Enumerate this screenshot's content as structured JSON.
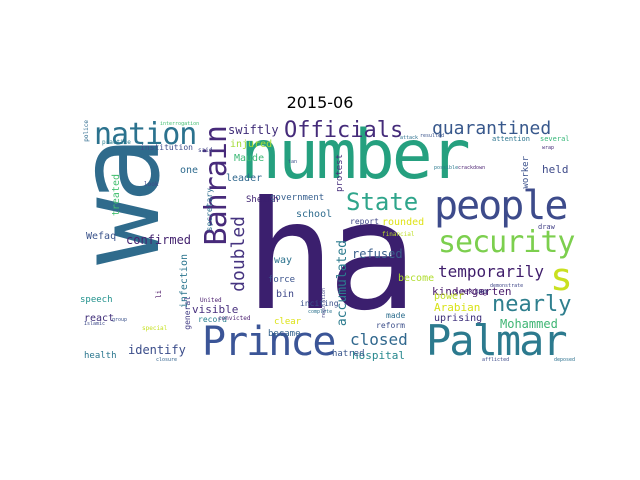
{
  "title": "2015-06",
  "words": [
    {
      "text": "ha",
      "color": "#3b1f6e"
    },
    {
      "text": "wa",
      "color": "#2f6b8c"
    },
    {
      "text": "number",
      "color": "#25a07f"
    },
    {
      "text": "people",
      "color": "#3d4b8b"
    },
    {
      "text": "Palmar",
      "color": "#2c7a8e"
    },
    {
      "text": "Prince",
      "color": "#3b5597"
    },
    {
      "text": "Bahrain",
      "color": "#472a7a"
    },
    {
      "text": "security",
      "color": "#7ccf4e"
    },
    {
      "text": "nation",
      "color": "#2b728e"
    },
    {
      "text": "Officials",
      "color": "#452b7a"
    },
    {
      "text": "State",
      "color": "#2fa58b"
    },
    {
      "text": "quarantined",
      "color": "#38588c"
    },
    {
      "text": "s",
      "color": "#c9e020"
    },
    {
      "text": "nearly",
      "color": "#2f7f8e"
    },
    {
      "text": "temporarily",
      "color": "#3f1d6b"
    },
    {
      "text": "doubled",
      "color": "#463480"
    },
    {
      "text": "closed",
      "color": "#31688e"
    },
    {
      "text": "hospital",
      "color": "#26878d"
    },
    {
      "text": "swiftly",
      "color": "#3f2c78"
    },
    {
      "text": "Mohammed",
      "color": "#3eb573"
    },
    {
      "text": "accumulated",
      "color": "#2c7b8e"
    },
    {
      "text": "kindergarten",
      "color": "#4a1c6b"
    },
    {
      "text": "refused",
      "color": "#3a5f8b"
    },
    {
      "text": "confirmed",
      "color": "#452470"
    },
    {
      "text": "identify",
      "color": "#3b4d8a"
    },
    {
      "text": "Arabian",
      "color": "#d8e219"
    },
    {
      "text": "uprising",
      "color": "#3b2c79"
    },
    {
      "text": "visible",
      "color": "#472f7d"
    },
    {
      "text": "school",
      "color": "#2f6c8e"
    },
    {
      "text": "government",
      "color": "#355e8d"
    },
    {
      "text": "Maude",
      "color": "#3cb876"
    },
    {
      "text": "injured",
      "color": "#a5db36"
    },
    {
      "text": "leader",
      "color": "#31688e"
    },
    {
      "text": "held",
      "color": "#3e4a89"
    },
    {
      "text": "seeking",
      "color": "#482173"
    },
    {
      "text": "power",
      "color": "#c2df23"
    },
    {
      "text": "health",
      "color": "#2a768e"
    },
    {
      "text": "speech",
      "color": "#21918c"
    },
    {
      "text": "Wefaq",
      "color": "#3a538b"
    },
    {
      "text": "Sheikh",
      "color": "#3b1f6e"
    },
    {
      "text": "one",
      "color": "#2f6b8e"
    },
    {
      "text": "bin",
      "color": "#3f4889"
    },
    {
      "text": "force",
      "color": "#3a528b"
    },
    {
      "text": "way",
      "color": "#2c728e"
    },
    {
      "text": "react",
      "color": "#3f2d78"
    },
    {
      "text": "infection",
      "color": "#2b758e"
    },
    {
      "text": "treated",
      "color": "#44bf70"
    },
    {
      "text": "protest",
      "color": "#472e7c"
    },
    {
      "text": "become",
      "color": "#b0dd2f"
    },
    {
      "text": "reform",
      "color": "#3c4f8a"
    },
    {
      "text": "made",
      "color": "#2e6e8e"
    },
    {
      "text": "hatred",
      "color": "#39568c"
    },
    {
      "text": "clear",
      "color": "#dde318"
    },
    {
      "text": "became",
      "color": "#33628d"
    },
    {
      "text": "inciting",
      "color": "#3b528b"
    },
    {
      "text": "record",
      "color": "#277f8e"
    },
    {
      "text": "convicted",
      "color": "#481c6e"
    },
    {
      "text": "rounded",
      "color": "#dfe318"
    },
    {
      "text": "report",
      "color": "#404688"
    },
    {
      "text": "secretary",
      "color": "#2e6e8e"
    },
    {
      "text": "institution",
      "color": "#3e4c8a"
    },
    {
      "text": "general",
      "color": "#433d84"
    },
    {
      "text": "attention",
      "color": "#2b748e"
    },
    {
      "text": "several",
      "color": "#35b779"
    },
    {
      "text": "worker",
      "color": "#3b518b"
    },
    {
      "text": "draw",
      "color": "#424086"
    },
    {
      "text": "special",
      "color": "#c5e021"
    },
    {
      "text": "practice",
      "color": "#277e8e"
    },
    {
      "text": "police",
      "color": "#2f6b8e"
    },
    {
      "text": "look",
      "color": "#3e4989"
    },
    {
      "text": "said",
      "color": "#404588"
    },
    {
      "text": "United",
      "color": "#481b6d"
    },
    {
      "text": "complete",
      "color": "#2c728e"
    },
    {
      "text": "Islamic",
      "color": "#3e4a89"
    },
    {
      "text": "li",
      "color": "#471063"
    },
    {
      "text": "tan",
      "color": "#3b528b"
    },
    {
      "text": "possible",
      "color": "#2a788e"
    },
    {
      "text": "crackdown",
      "color": "#481f70"
    },
    {
      "text": "demonstrate",
      "color": "#3f4788"
    },
    {
      "text": "afflicted",
      "color": "#3e4c8a"
    },
    {
      "text": "deposed",
      "color": "#2c718e"
    },
    {
      "text": "interrogation",
      "color": "#44bf70"
    },
    {
      "text": "group",
      "color": "#3b528b"
    },
    {
      "text": "closure",
      "color": "#33638d"
    },
    {
      "text": "wrap",
      "color": "#472c7a"
    },
    {
      "text": "attack",
      "color": "#2d708e"
    },
    {
      "text": "regulation",
      "color": "#414487"
    },
    {
      "text": "financial",
      "color": "#bddf26"
    },
    {
      "text": "resulted",
      "color": "#3a548c"
    },
    {
      "text": "laik",
      "color": "#3e4989"
    }
  ]
}
